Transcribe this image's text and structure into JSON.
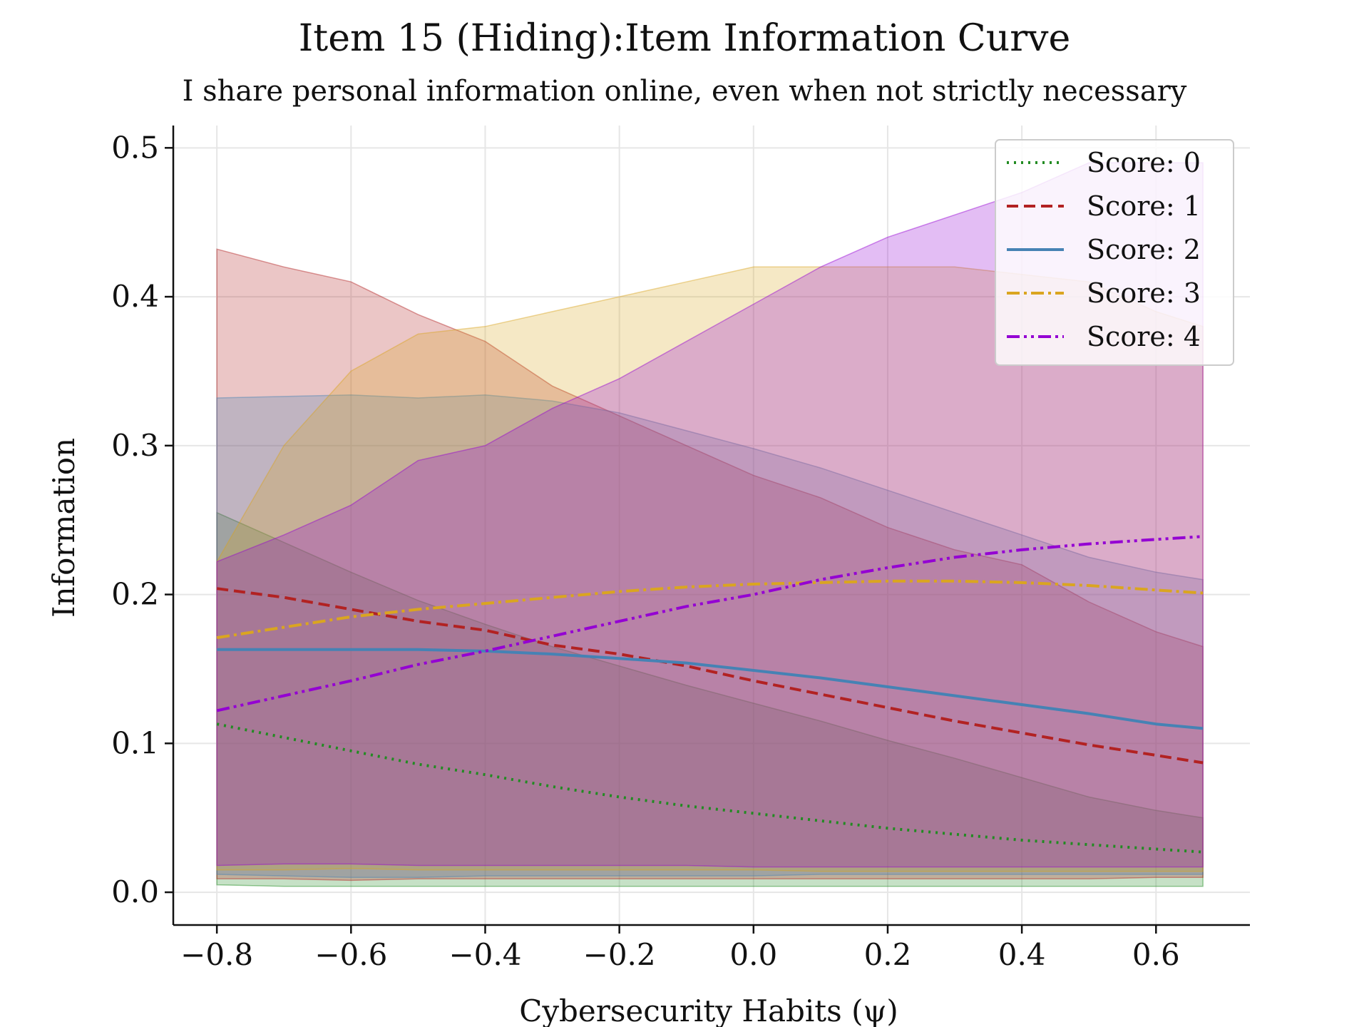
{
  "chart_data": {
    "type": "line",
    "title": "Item 15 (Hiding):Item Information Curve",
    "subtitle": "I share personal information online, even when not strictly necessary",
    "xlabel": "Cybersecurity Habits (ψ)",
    "ylabel": "Information",
    "xlim": [
      -0.865,
      0.74
    ],
    "ylim": [
      -0.022,
      0.515
    ],
    "xticks": [
      -0.8,
      -0.6,
      -0.4,
      -0.2,
      0.0,
      0.2,
      0.4,
      0.6
    ],
    "xtick_labels": [
      "−0.8",
      "−0.6",
      "−0.4",
      "−0.2",
      "0.0",
      "0.2",
      "0.4",
      "0.6"
    ],
    "yticks": [
      0.0,
      0.1,
      0.2,
      0.3,
      0.4,
      0.5
    ],
    "ytick_labels": [
      "0.0",
      "0.1",
      "0.2",
      "0.3",
      "0.4",
      "0.5"
    ],
    "grid": true,
    "legend_position": "top-right",
    "x": [
      -0.8,
      -0.7,
      -0.6,
      -0.5,
      -0.4,
      -0.3,
      -0.2,
      -0.1,
      0.0,
      0.1,
      0.2,
      0.3,
      0.4,
      0.5,
      0.6,
      0.67
    ],
    "series": [
      {
        "name": "Score: 0",
        "color": "#228b22",
        "dash": "dotted",
        "values": [
          0.113,
          0.104,
          0.095,
          0.086,
          0.079,
          0.071,
          0.064,
          0.058,
          0.053,
          0.048,
          0.043,
          0.039,
          0.035,
          0.032,
          0.029,
          0.027
        ],
        "band_upper": [
          0.255,
          0.235,
          0.215,
          0.196,
          0.18,
          0.165,
          0.152,
          0.139,
          0.127,
          0.115,
          0.102,
          0.09,
          0.077,
          0.064,
          0.055,
          0.05
        ],
        "band_lower": [
          0.005,
          0.004,
          0.004,
          0.004,
          0.004,
          0.004,
          0.004,
          0.004,
          0.004,
          0.004,
          0.004,
          0.004,
          0.004,
          0.004,
          0.004,
          0.004
        ]
      },
      {
        "name": "Score: 1",
        "color": "#b22222",
        "dash": "dashed",
        "values": [
          0.204,
          0.198,
          0.19,
          0.182,
          0.176,
          0.166,
          0.16,
          0.152,
          0.142,
          0.133,
          0.124,
          0.115,
          0.107,
          0.099,
          0.092,
          0.087
        ],
        "band_upper": [
          0.432,
          0.42,
          0.41,
          0.388,
          0.37,
          0.34,
          0.32,
          0.3,
          0.28,
          0.265,
          0.245,
          0.23,
          0.22,
          0.195,
          0.175,
          0.165
        ],
        "band_lower": [
          0.009,
          0.009,
          0.008,
          0.009,
          0.009,
          0.009,
          0.009,
          0.009,
          0.009,
          0.009,
          0.009,
          0.009,
          0.009,
          0.009,
          0.01,
          0.01
        ]
      },
      {
        "name": "Score: 2",
        "color": "#4682b4",
        "dash": "solid",
        "values": [
          0.163,
          0.163,
          0.163,
          0.163,
          0.162,
          0.16,
          0.157,
          0.154,
          0.149,
          0.144,
          0.138,
          0.132,
          0.126,
          0.12,
          0.113,
          0.11
        ],
        "band_upper": [
          0.332,
          0.333,
          0.334,
          0.332,
          0.334,
          0.33,
          0.322,
          0.31,
          0.298,
          0.285,
          0.27,
          0.255,
          0.24,
          0.225,
          0.215,
          0.21
        ],
        "band_lower": [
          0.012,
          0.011,
          0.01,
          0.01,
          0.011,
          0.011,
          0.011,
          0.011,
          0.011,
          0.012,
          0.012,
          0.012,
          0.012,
          0.012,
          0.012,
          0.012
        ]
      },
      {
        "name": "Score: 3",
        "color": "#daa520",
        "dash": "dashdot",
        "values": [
          0.171,
          0.178,
          0.185,
          0.19,
          0.194,
          0.198,
          0.202,
          0.205,
          0.207,
          0.208,
          0.209,
          0.209,
          0.208,
          0.206,
          0.203,
          0.201
        ],
        "band_upper": [
          0.222,
          0.3,
          0.35,
          0.375,
          0.38,
          0.39,
          0.4,
          0.41,
          0.42,
          0.42,
          0.42,
          0.42,
          0.415,
          0.41,
          0.39,
          0.38
        ],
        "band_lower": [
          0.015,
          0.015,
          0.016,
          0.015,
          0.015,
          0.015,
          0.015,
          0.015,
          0.015,
          0.014,
          0.014,
          0.014,
          0.014,
          0.014,
          0.014,
          0.014
        ]
      },
      {
        "name": "Score: 4",
        "color": "#9400d3",
        "dash": "dashdotdot",
        "values": [
          0.122,
          0.132,
          0.142,
          0.153,
          0.162,
          0.172,
          0.182,
          0.192,
          0.2,
          0.21,
          0.218,
          0.225,
          0.23,
          0.234,
          0.237,
          0.239
        ],
        "band_upper": [
          0.222,
          0.24,
          0.26,
          0.29,
          0.3,
          0.325,
          0.345,
          0.37,
          0.395,
          0.42,
          0.44,
          0.455,
          0.47,
          0.49,
          0.49,
          0.49
        ],
        "band_lower": [
          0.018,
          0.019,
          0.019,
          0.018,
          0.018,
          0.018,
          0.018,
          0.018,
          0.017,
          0.017,
          0.017,
          0.017,
          0.017,
          0.017,
          0.017,
          0.017
        ]
      }
    ]
  }
}
